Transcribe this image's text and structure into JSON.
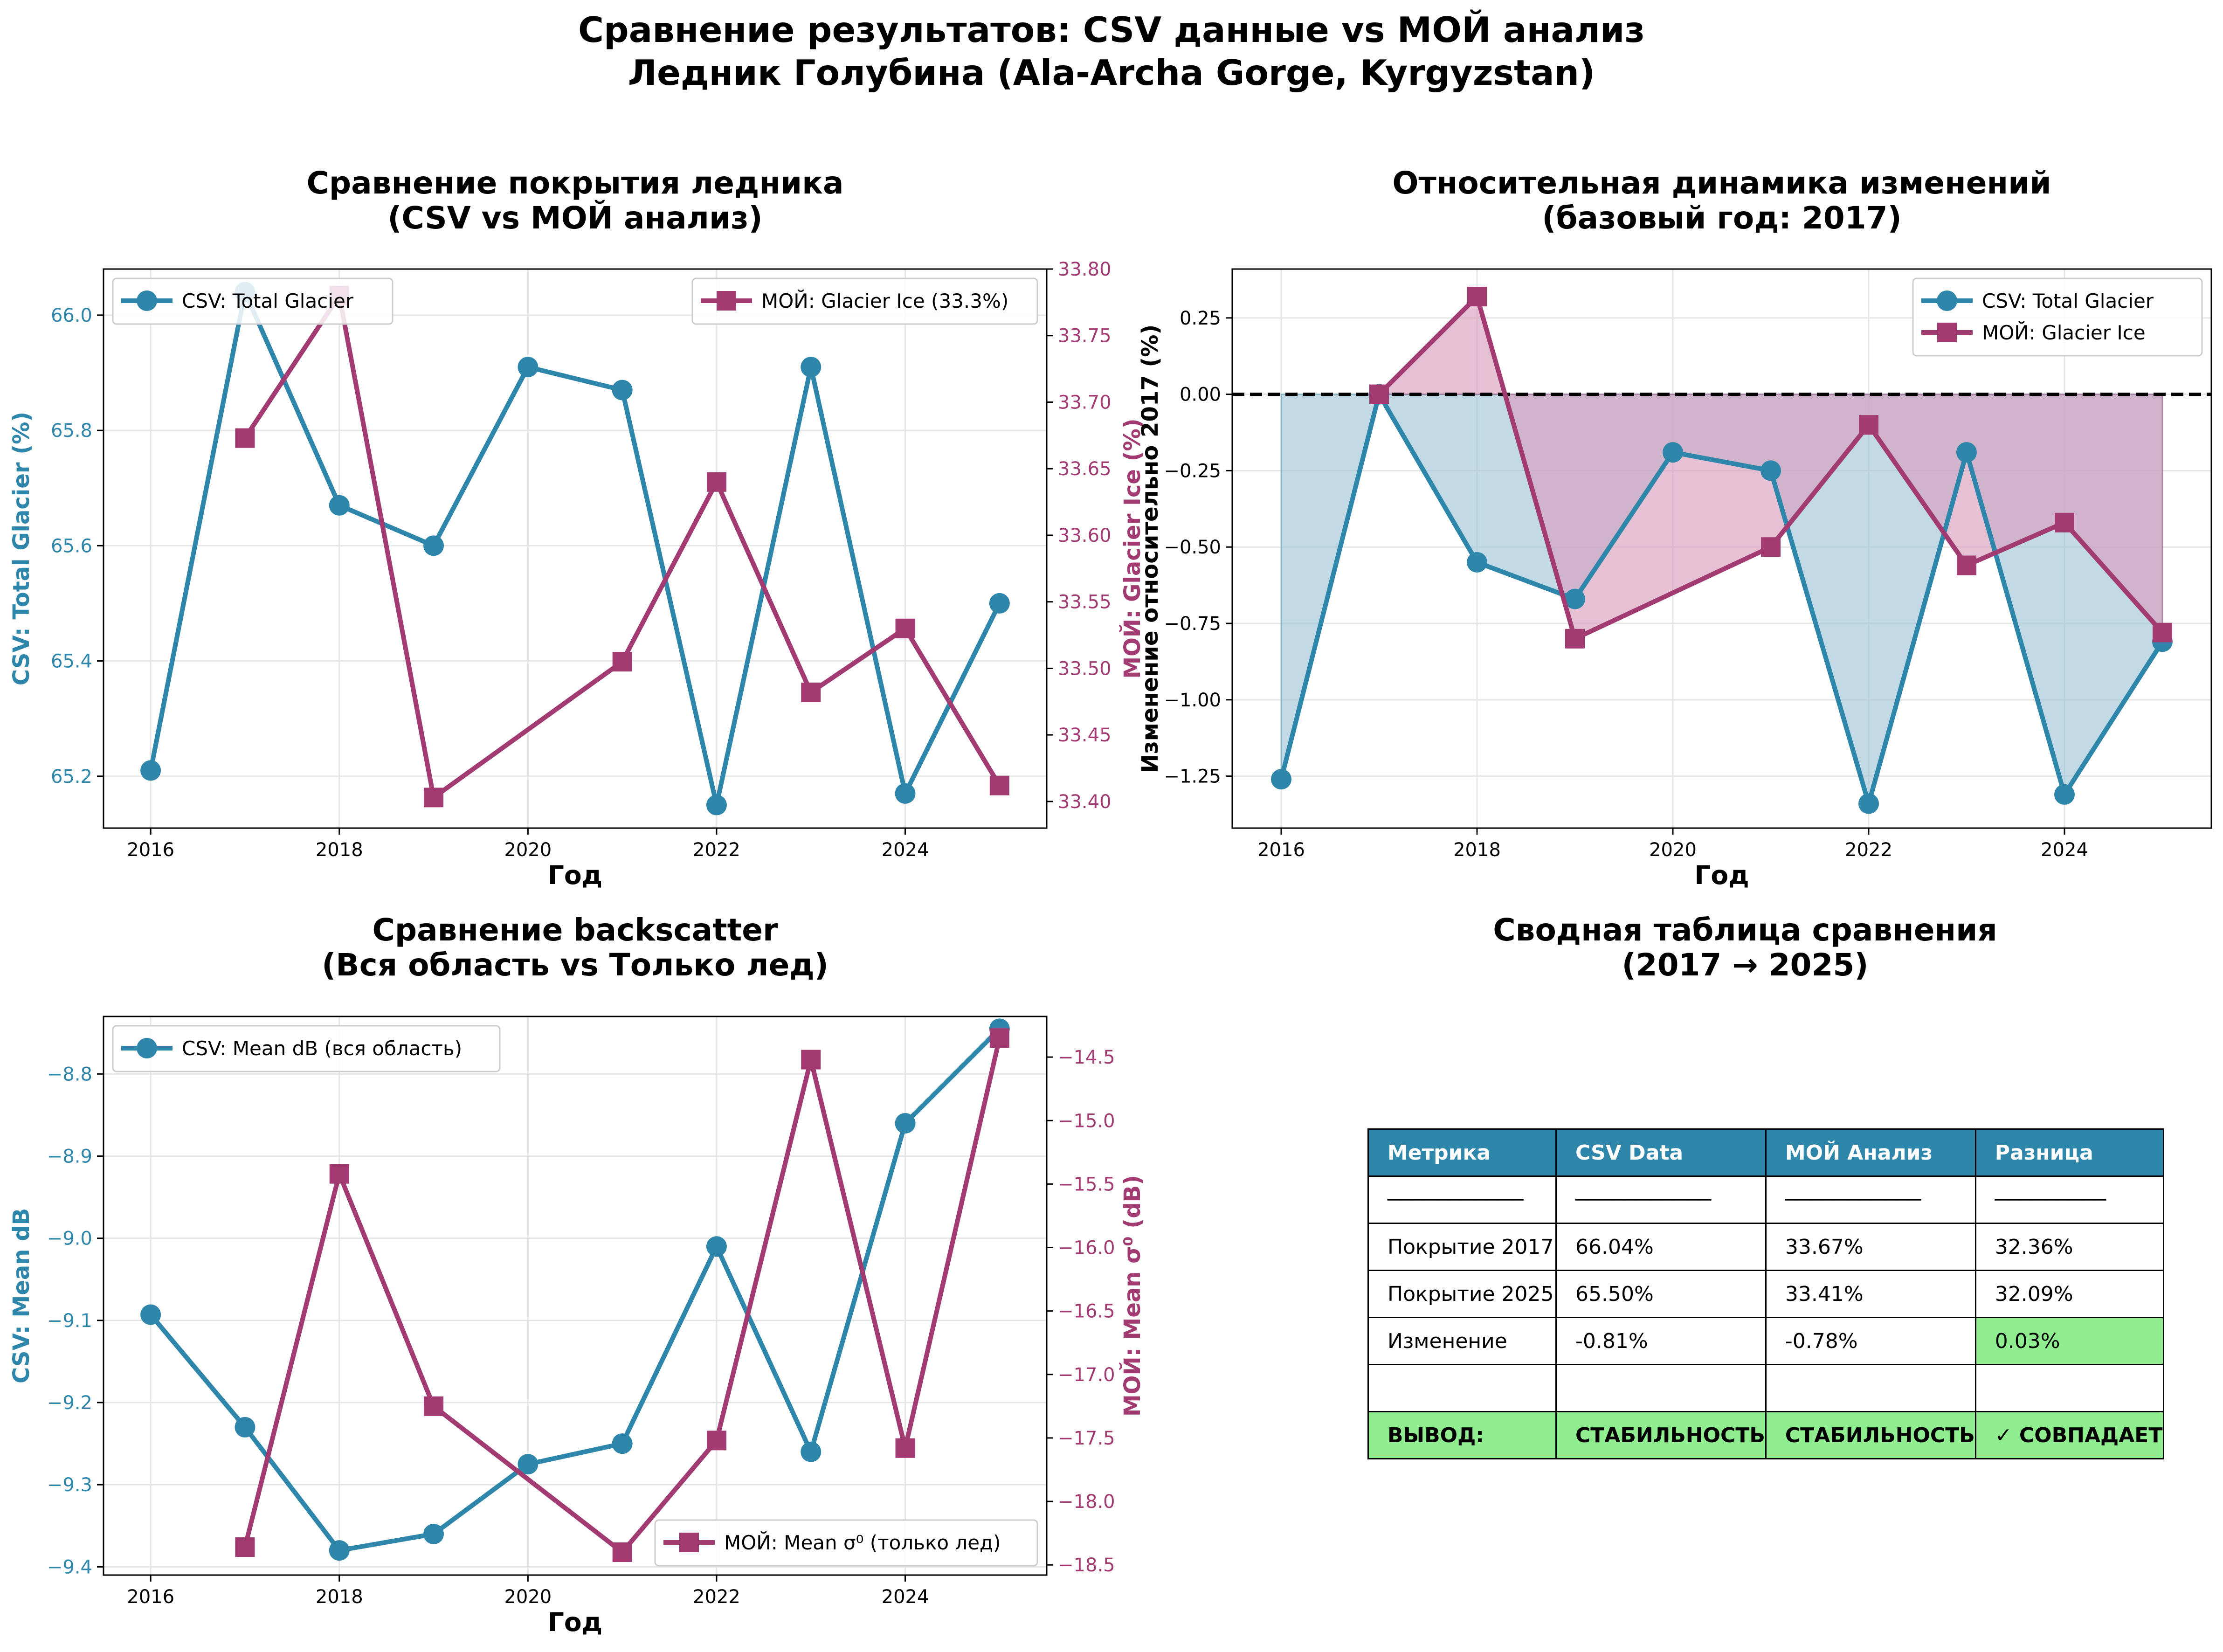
{
  "figure": {
    "suptitle_line1": "Сравнение результатов: CSV данные vs МОЙ анализ",
    "suptitle_line2": "Ледник Голубина (Ala-Archa Gorge, Kyrgyzstan)"
  },
  "colors": {
    "csv": "#2E86AB",
    "moi": "#A23B72",
    "grid": "#e6e6e6",
    "fill_csv": "#9fc6d9",
    "fill_moi": "#d9a0bd",
    "highlight": "#90EE90"
  },
  "chart_data": [
    {
      "type": "line",
      "title": "Сравнение покрытия ледника\n(CSV vs МОЙ анализ)",
      "xlabel": "Год",
      "x": [
        2016,
        2017,
        2018,
        2019,
        2020,
        2021,
        2022,
        2023,
        2024,
        2025
      ],
      "xlim": [
        2015.5,
        2025.5
      ],
      "xticks": [
        2016,
        2018,
        2020,
        2022,
        2024
      ],
      "left_axis": {
        "label": "CSV: Total Glacier (%)",
        "ylim": [
          65.11,
          66.08
        ],
        "ticks": [
          "65.2",
          "65.4",
          "65.6",
          "65.8",
          "66.0"
        ]
      },
      "right_axis": {
        "label": "МОЙ: Glacier Ice (%)",
        "ylim": [
          33.38,
          33.8
        ],
        "ticks": [
          "33.40",
          "33.45",
          "33.50",
          "33.55",
          "33.60",
          "33.65",
          "33.70",
          "33.75",
          "33.80"
        ]
      },
      "series": [
        {
          "name": "CSV: Total Glacier",
          "axis": "left",
          "marker": "circle",
          "x": [
            2016,
            2017,
            2018,
            2019,
            2020,
            2021,
            2022,
            2023,
            2024,
            2025
          ],
          "values": [
            65.21,
            66.04,
            65.67,
            65.6,
            65.91,
            65.87,
            65.15,
            65.91,
            65.17,
            65.5
          ]
        },
        {
          "name": "МОЙ: Glacier Ice (33.3%)",
          "axis": "right",
          "marker": "square",
          "x": [
            2017,
            2018,
            2019,
            2021,
            2022,
            2023,
            2024,
            2025
          ],
          "values": [
            33.673,
            33.78,
            33.403,
            33.505,
            33.64,
            33.482,
            33.53,
            33.412
          ]
        }
      ],
      "legend": [
        "top-left",
        "top-right"
      ],
      "grid": true
    },
    {
      "type": "line",
      "title": "Относительная динамика изменений\n(базовый год: 2017)",
      "xlabel": "Год",
      "ylabel": "Изменение относительно 2017 (%)",
      "xlim": [
        2015.5,
        2025.5
      ],
      "xticks": [
        2016,
        2018,
        2020,
        2022,
        2024
      ],
      "ylim": [
        -1.42,
        0.41
      ],
      "yticks": [
        "-1.25",
        "-1.00",
        "-0.75",
        "-0.50",
        "-0.25",
        "0.00",
        "0.25"
      ],
      "baseline": 0,
      "series": [
        {
          "name": "CSV: Total Glacier",
          "marker": "circle",
          "fill_to_baseline": true,
          "x": [
            2016,
            2017,
            2018,
            2019,
            2020,
            2021,
            2022,
            2023,
            2024,
            2025
          ],
          "values": [
            -1.26,
            0.0,
            -0.55,
            -0.67,
            -0.19,
            -0.25,
            -1.34,
            -0.19,
            -1.31,
            -0.81
          ]
        },
        {
          "name": "МОЙ: Glacier Ice",
          "marker": "square",
          "fill_to_baseline": true,
          "x": [
            2017,
            2018,
            2019,
            2021,
            2022,
            2023,
            2024,
            2025
          ],
          "values": [
            0.0,
            0.32,
            -0.8,
            -0.5,
            -0.1,
            -0.56,
            -0.42,
            -0.78
          ]
        }
      ],
      "legend": "top-right",
      "grid": true
    },
    {
      "type": "line",
      "title": "Сравнение backscatter\n(Вся область vs Только лед)",
      "xlabel": "Год",
      "xlim": [
        2015.5,
        2025.5
      ],
      "xticks": [
        2016,
        2018,
        2020,
        2022,
        2024
      ],
      "left_axis": {
        "label": "CSV: Mean dB",
        "ylim": [
          -9.41,
          -8.73
        ],
        "ticks": [
          "-9.4",
          "-9.3",
          "-9.2",
          "-9.1",
          "-9.0",
          "-8.9",
          "-8.8"
        ]
      },
      "right_axis": {
        "label": "МОЙ: Mean σ⁰ (dB)",
        "ylim": [
          -18.58,
          -14.18
        ],
        "ticks": [
          "-18.5",
          "-18.0",
          "-17.5",
          "-17.0",
          "-16.5",
          "-16.0",
          "-15.5",
          "-15.0",
          "-14.5"
        ]
      },
      "series": [
        {
          "name": "CSV: Mean dB (вся область)",
          "axis": "left",
          "marker": "circle",
          "x": [
            2016,
            2017,
            2018,
            2019,
            2020,
            2021,
            2022,
            2023,
            2024,
            2025
          ],
          "values": [
            -9.093,
            -9.23,
            -9.38,
            -9.36,
            -9.275,
            -9.25,
            -9.01,
            -9.26,
            -8.86,
            -8.745
          ]
        },
        {
          "name": "МОЙ: Mean σ⁰ (только лед)",
          "axis": "right",
          "marker": "square",
          "x": [
            2017,
            2018,
            2019,
            2021,
            2022,
            2023,
            2024,
            2025
          ],
          "values": [
            -18.36,
            -15.42,
            -17.25,
            -18.4,
            -17.52,
            -14.52,
            -17.58,
            -14.35
          ]
        }
      ],
      "legend": [
        "top-left",
        "bottom-right"
      ],
      "grid": true
    },
    {
      "type": "table",
      "title": "Сводная таблица сравнения\n(2017 → 2025)",
      "columns": [
        "Метрика",
        "CSV Data",
        "МОЙ Анализ",
        "Разница"
      ],
      "rows": [
        [
          "───────────",
          "───────────",
          "───────────",
          "─────────"
        ],
        [
          "Покрытие 2017",
          "66.04%",
          "33.67%",
          "32.36%"
        ],
        [
          "Покрытие 2025",
          "65.50%",
          "33.41%",
          "32.09%"
        ],
        [
          "Изменение",
          "-0.81%",
          "-0.78%",
          "0.03%"
        ],
        [
          "",
          "",
          "",
          ""
        ],
        [
          "ВЫВОД:",
          "СТАБИЛЬНОСТЬ",
          "СТАБИЛЬНОСТЬ",
          "✓ СОВПАДАЕТ"
        ]
      ]
    }
  ]
}
